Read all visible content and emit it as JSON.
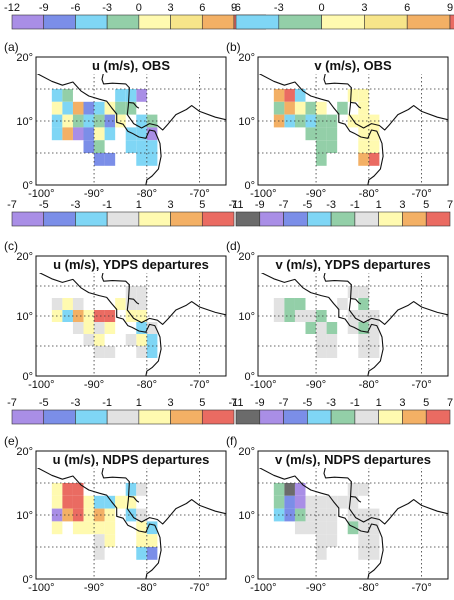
{
  "colorbars": [
    {
      "ticks": [
        "-12",
        "-9",
        "-6",
        "-3",
        "0",
        "3",
        "6",
        "9"
      ],
      "colors": [
        "#a98ee6",
        "#7b8ee8",
        "#7fd6f5",
        "#93cfa8",
        "#fffab0",
        "#f7e58a",
        "#f3b065",
        "#ea6b62"
      ]
    },
    {
      "ticks": [
        "-6",
        "-3",
        "0",
        "3",
        "6",
        "9"
      ],
      "colors": [
        "#7fd6f5",
        "#93cfa8",
        "#fffab0",
        "#f7e58a",
        "#f3b065",
        "#ea6b62"
      ]
    },
    {
      "ticks": [
        "-7",
        "-5",
        "-3",
        "-1",
        "1",
        "3",
        "5",
        "7"
      ],
      "colors": [
        "#a98ee6",
        "#7b8ee8",
        "#7fd6f5",
        "#e2e2e2",
        "#fffab0",
        "#f3b065",
        "#ea6b62"
      ]
    },
    {
      "ticks": [
        "-11",
        "-9",
        "-7",
        "-5",
        "-3",
        "-1",
        "1",
        "3",
        "5",
        "7"
      ],
      "colors": [
        "#6b6b6b",
        "#a98ee6",
        "#7b8ee8",
        "#7fd6f5",
        "#93cfa8",
        "#e2e2e2",
        "#fffab0",
        "#f3b065",
        "#ea6b62"
      ]
    }
  ],
  "chart_data": [
    {
      "type": "heatmap",
      "panel_label": "(a)",
      "title": "u (m/s), OBS",
      "xticks": [
        "-100°",
        "-90°",
        "-80°",
        "-70°"
      ],
      "yticks": [
        "0°",
        "10°",
        "20°"
      ],
      "xlim": [
        -101,
        -65
      ],
      "ylim": [
        0,
        20
      ]
    },
    {
      "type": "heatmap",
      "panel_label": "(b)",
      "title": "v (m/s), OBS",
      "xticks": [
        "-100°",
        "-90°",
        "-80°",
        "-70°"
      ],
      "yticks": [
        "0°",
        "10°",
        "20°"
      ],
      "xlim": [
        -101,
        -65
      ],
      "ylim": [
        0,
        20
      ]
    },
    {
      "type": "heatmap",
      "panel_label": "(c)",
      "title": "u (m/s), YDPS departures",
      "xticks": [
        "-100°",
        "-90°",
        "-80°",
        "-70°"
      ],
      "yticks": [
        "0°",
        "10°",
        "20°"
      ],
      "xlim": [
        -101,
        -65
      ],
      "ylim": [
        0,
        20
      ]
    },
    {
      "type": "heatmap",
      "panel_label": "(d)",
      "title": "v (m/s), YDPS departures",
      "xticks": [
        "-100°",
        "-90°",
        "-80°",
        "-70°"
      ],
      "yticks": [
        "0°",
        "10°",
        "20°"
      ],
      "xlim": [
        -101,
        -65
      ],
      "ylim": [
        0,
        20
      ]
    },
    {
      "type": "heatmap",
      "panel_label": "(e)",
      "title": "u (m/s), NDPS departures",
      "xticks": [
        "-100°",
        "-90°",
        "-80°",
        "-70°"
      ],
      "yticks": [
        "0°",
        "10°",
        "20°"
      ],
      "xlim": [
        -101,
        -65
      ],
      "ylim": [
        0,
        20
      ]
    },
    {
      "type": "heatmap",
      "panel_label": "(f)",
      "title": "v (m/s), NDPS departures",
      "xticks": [
        "-100°",
        "-90°",
        "-80°",
        "-70°"
      ],
      "yticks": [
        "0°",
        "10°",
        "20°"
      ],
      "xlim": [
        -101,
        -65
      ],
      "ylim": [
        0,
        20
      ]
    }
  ]
}
